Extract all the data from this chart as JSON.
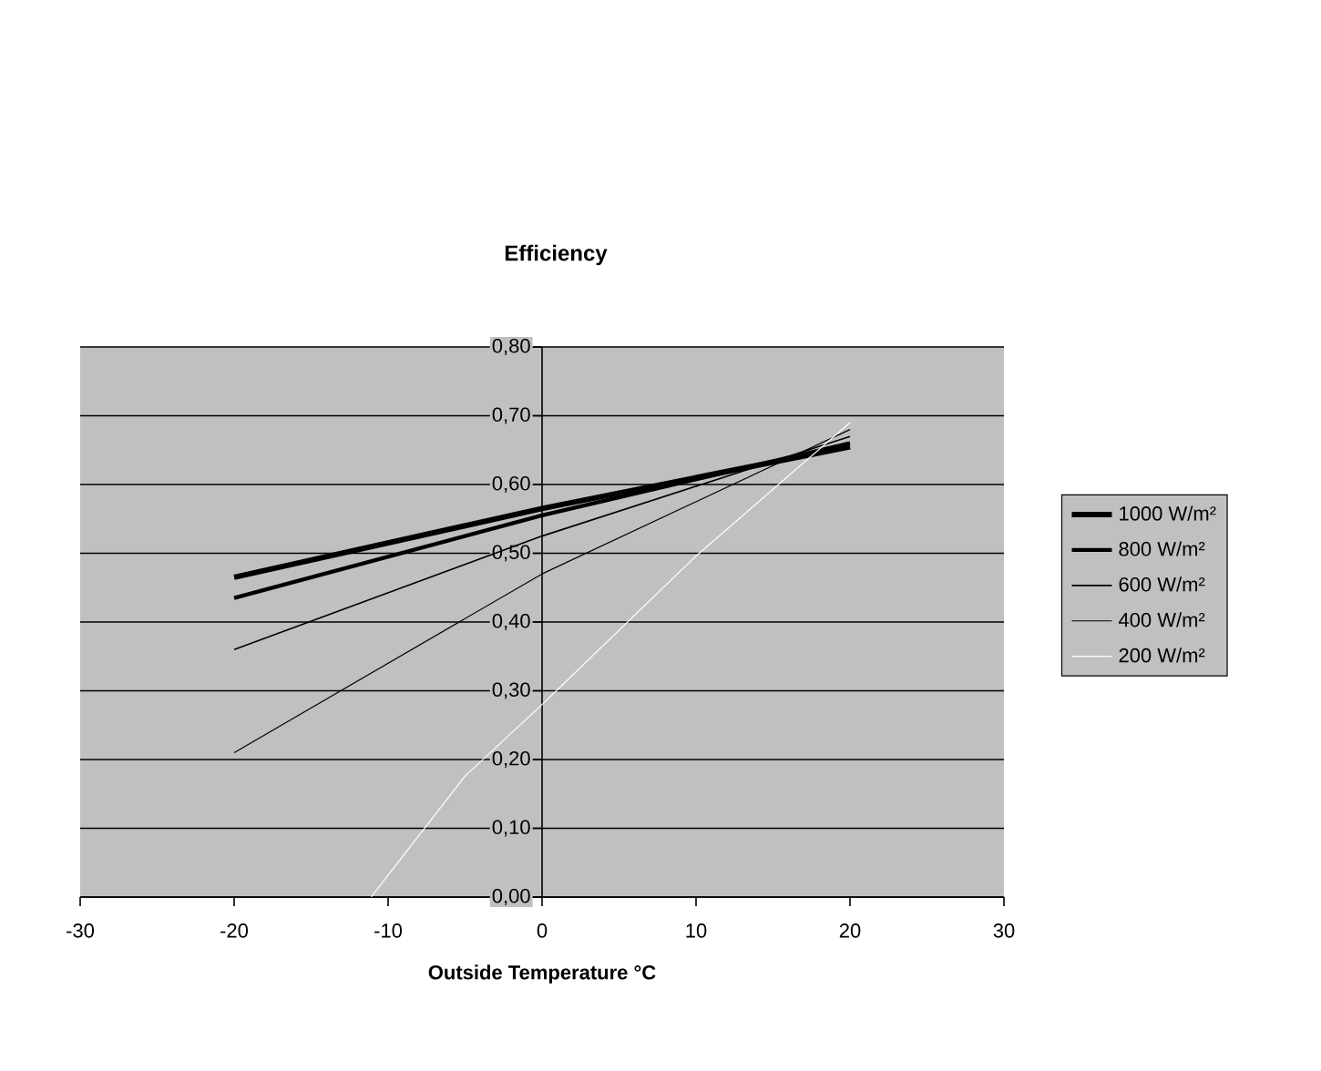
{
  "chart_data": {
    "type": "line",
    "title": "Efficiency",
    "xlabel": "Outside Temperature °C",
    "xlim": [
      -30,
      30
    ],
    "xticks": [
      -30,
      -20,
      -10,
      0,
      10,
      20,
      30
    ],
    "ylim": [
      0,
      0.8
    ],
    "yticks": [
      {
        "value": 0,
        "label": "0,00"
      },
      {
        "value": 0.1,
        "label": "0,10"
      },
      {
        "value": 0.2,
        "label": "0,20"
      },
      {
        "value": 0.3,
        "label": "0,30"
      },
      {
        "value": 0.4,
        "label": "0,40"
      },
      {
        "value": 0.5,
        "label": "0,50"
      },
      {
        "value": 0.6,
        "label": "0,60"
      },
      {
        "value": 0.7,
        "label": "0,70"
      },
      {
        "value": 0.8,
        "label": "0,80"
      }
    ],
    "grid": "y",
    "legend": "right",
    "series": [
      {
        "name": "1000 W/m²",
        "color": "#000000",
        "x": [
          -20,
          0,
          20
        ],
        "values": [
          0.465,
          0.565,
          0.655
        ]
      },
      {
        "name": "800 W/m²",
        "color": "#000000",
        "x": [
          -20,
          0,
          20
        ],
        "values": [
          0.435,
          0.555,
          0.66
        ]
      },
      {
        "name": "600 W/m²",
        "color": "#000000",
        "x": [
          -20,
          0,
          20
        ],
        "values": [
          0.36,
          0.525,
          0.67
        ]
      },
      {
        "name": "400 W/m²",
        "color": "#000000",
        "x": [
          -20,
          0,
          20
        ],
        "values": [
          0.21,
          0.47,
          0.68
        ]
      },
      {
        "name": "200 W/m²",
        "color": "#ffffff",
        "x": [
          -11.1,
          -5,
          0,
          10,
          20
        ],
        "values": [
          0,
          0.176,
          0.28,
          0.496,
          0.69
        ]
      }
    ]
  }
}
